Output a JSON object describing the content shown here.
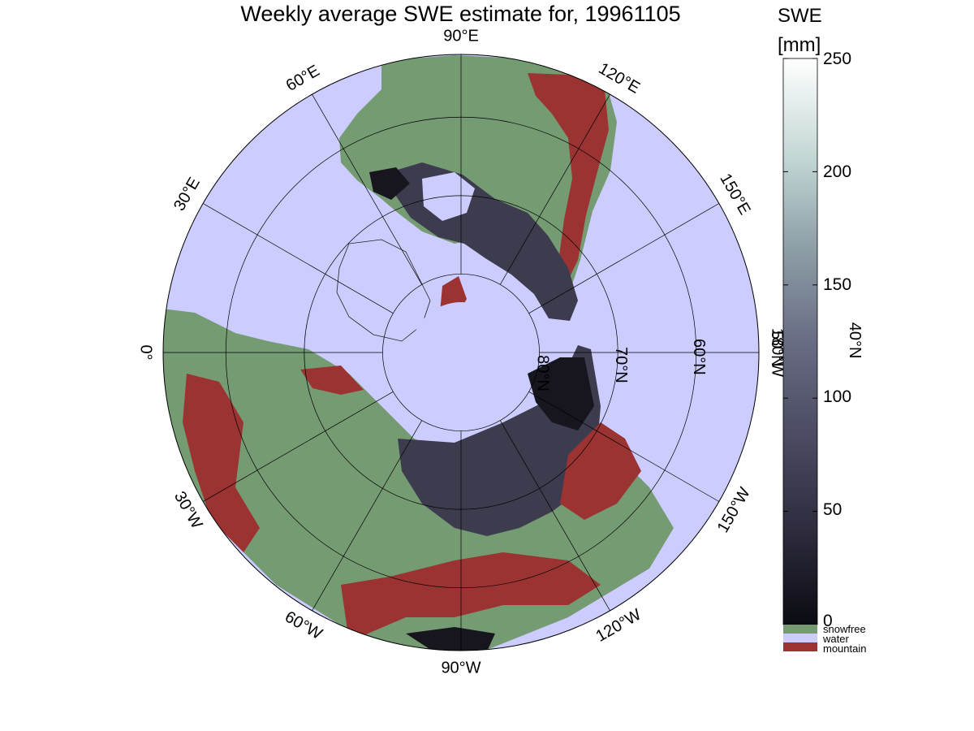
{
  "title": "Weekly average SWE estimate for, 19961105",
  "colorbar": {
    "title_line1": "SWE",
    "title_line2": "[mm]",
    "ticks": [
      "250",
      "200",
      "150",
      "100",
      "50",
      "0"
    ],
    "tick_values": [
      250,
      200,
      150,
      100,
      50,
      0
    ],
    "range": [
      0,
      250
    ],
    "gradient_colors": [
      "#0b0b12",
      "#2e2c3e",
      "#4a4a62",
      "#686c84",
      "#8fa0a8",
      "#c4d8d6",
      "#ffffff"
    ],
    "categories": [
      {
        "label": "snowfree",
        "color": "#759b72"
      },
      {
        "label": "water",
        "color": "#ccccff"
      },
      {
        "label": "mountain",
        "color": "#9b3333"
      }
    ]
  },
  "map": {
    "projection": "north-polar-stereographic",
    "longitude_labels": [
      {
        "text": "90°W",
        "lon": -90
      },
      {
        "text": "120°W",
        "lon": -120
      },
      {
        "text": "150°W",
        "lon": -150
      },
      {
        "text": "180°W",
        "lon": 180
      },
      {
        "text": "150°E",
        "lon": 150
      },
      {
        "text": "120°E",
        "lon": 120
      },
      {
        "text": "90°E",
        "lon": 90
      },
      {
        "text": "60°E",
        "lon": 60
      },
      {
        "text": "30°E",
        "lon": 30
      },
      {
        "text": "0°",
        "lon": 0
      },
      {
        "text": "30°W",
        "lon": -30
      },
      {
        "text": "60°W",
        "lon": -60
      }
    ],
    "latitude_labels": [
      {
        "text": "80°N",
        "lat": 80
      },
      {
        "text": "70°N",
        "lat": 70
      },
      {
        "text": "60°N",
        "lat": 60
      },
      {
        "text": "50°N",
        "lat": 50
      },
      {
        "text": "40°N",
        "lat": 40
      }
    ],
    "colors": {
      "ocean": "#ccccff",
      "snowfree": "#759b72",
      "mountain": "#9b3333",
      "snow": "#3d3b4e",
      "deep_snow": "#17161e",
      "grid": "#000000"
    }
  }
}
